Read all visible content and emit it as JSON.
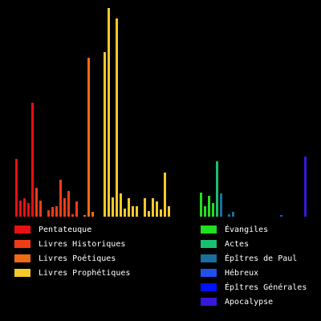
{
  "chart_data": {
    "type": "bar",
    "xlim": [
      0,
      72
    ],
    "ylim": [
      0,
      260
    ],
    "series": [
      {
        "name": "Pentateuque",
        "color": "#e81010",
        "x": [
          0,
          1,
          2,
          3,
          4
        ],
        "values": [
          72,
          20,
          23,
          17,
          142
        ]
      },
      {
        "name": "Livres Historiques",
        "color": "#f03c14",
        "x": [
          5,
          6,
          8,
          9,
          10,
          11,
          12,
          13,
          14,
          15
        ],
        "values": [
          36,
          20,
          8,
          12,
          13,
          46,
          23,
          32,
          3,
          19
        ]
      },
      {
        "name": "Livres Poétiques",
        "color": "#f06a14",
        "x": [
          17,
          18,
          19
        ],
        "values": [
          2,
          198,
          6
        ]
      },
      {
        "name": "Livres Prophétiques",
        "color": "#f8c828",
        "x": [
          22,
          23,
          24,
          25,
          26,
          27,
          28,
          29,
          30,
          32,
          33,
          34,
          35,
          36,
          37,
          38
        ],
        "values": [
          205,
          260,
          24,
          247,
          29,
          10,
          23,
          13,
          13,
          23,
          7,
          23,
          19,
          9,
          55,
          13
        ]
      },
      {
        "name": "Évangiles",
        "color": "#20e020",
        "x": [
          46,
          47,
          48,
          49
        ],
        "values": [
          30,
          13,
          26,
          17
        ]
      },
      {
        "name": "Actes",
        "color": "#18c070",
        "x": [
          50
        ],
        "values": [
          69
        ]
      },
      {
        "name": "Épîtres de Paul",
        "color": "#1a6e9e",
        "x": [
          51,
          53,
          54
        ],
        "values": [
          29,
          3,
          6
        ]
      },
      {
        "name": "Hébreux",
        "color": "#2050f0",
        "x": [
          66
        ],
        "values": [
          2
        ]
      },
      {
        "name": "Épîtres Générales",
        "color": "#0010ff",
        "x": [],
        "values": []
      },
      {
        "name": "Apocalypse",
        "color": "#3818d8",
        "x": [
          72
        ],
        "values": [
          75
        ]
      }
    ]
  }
}
